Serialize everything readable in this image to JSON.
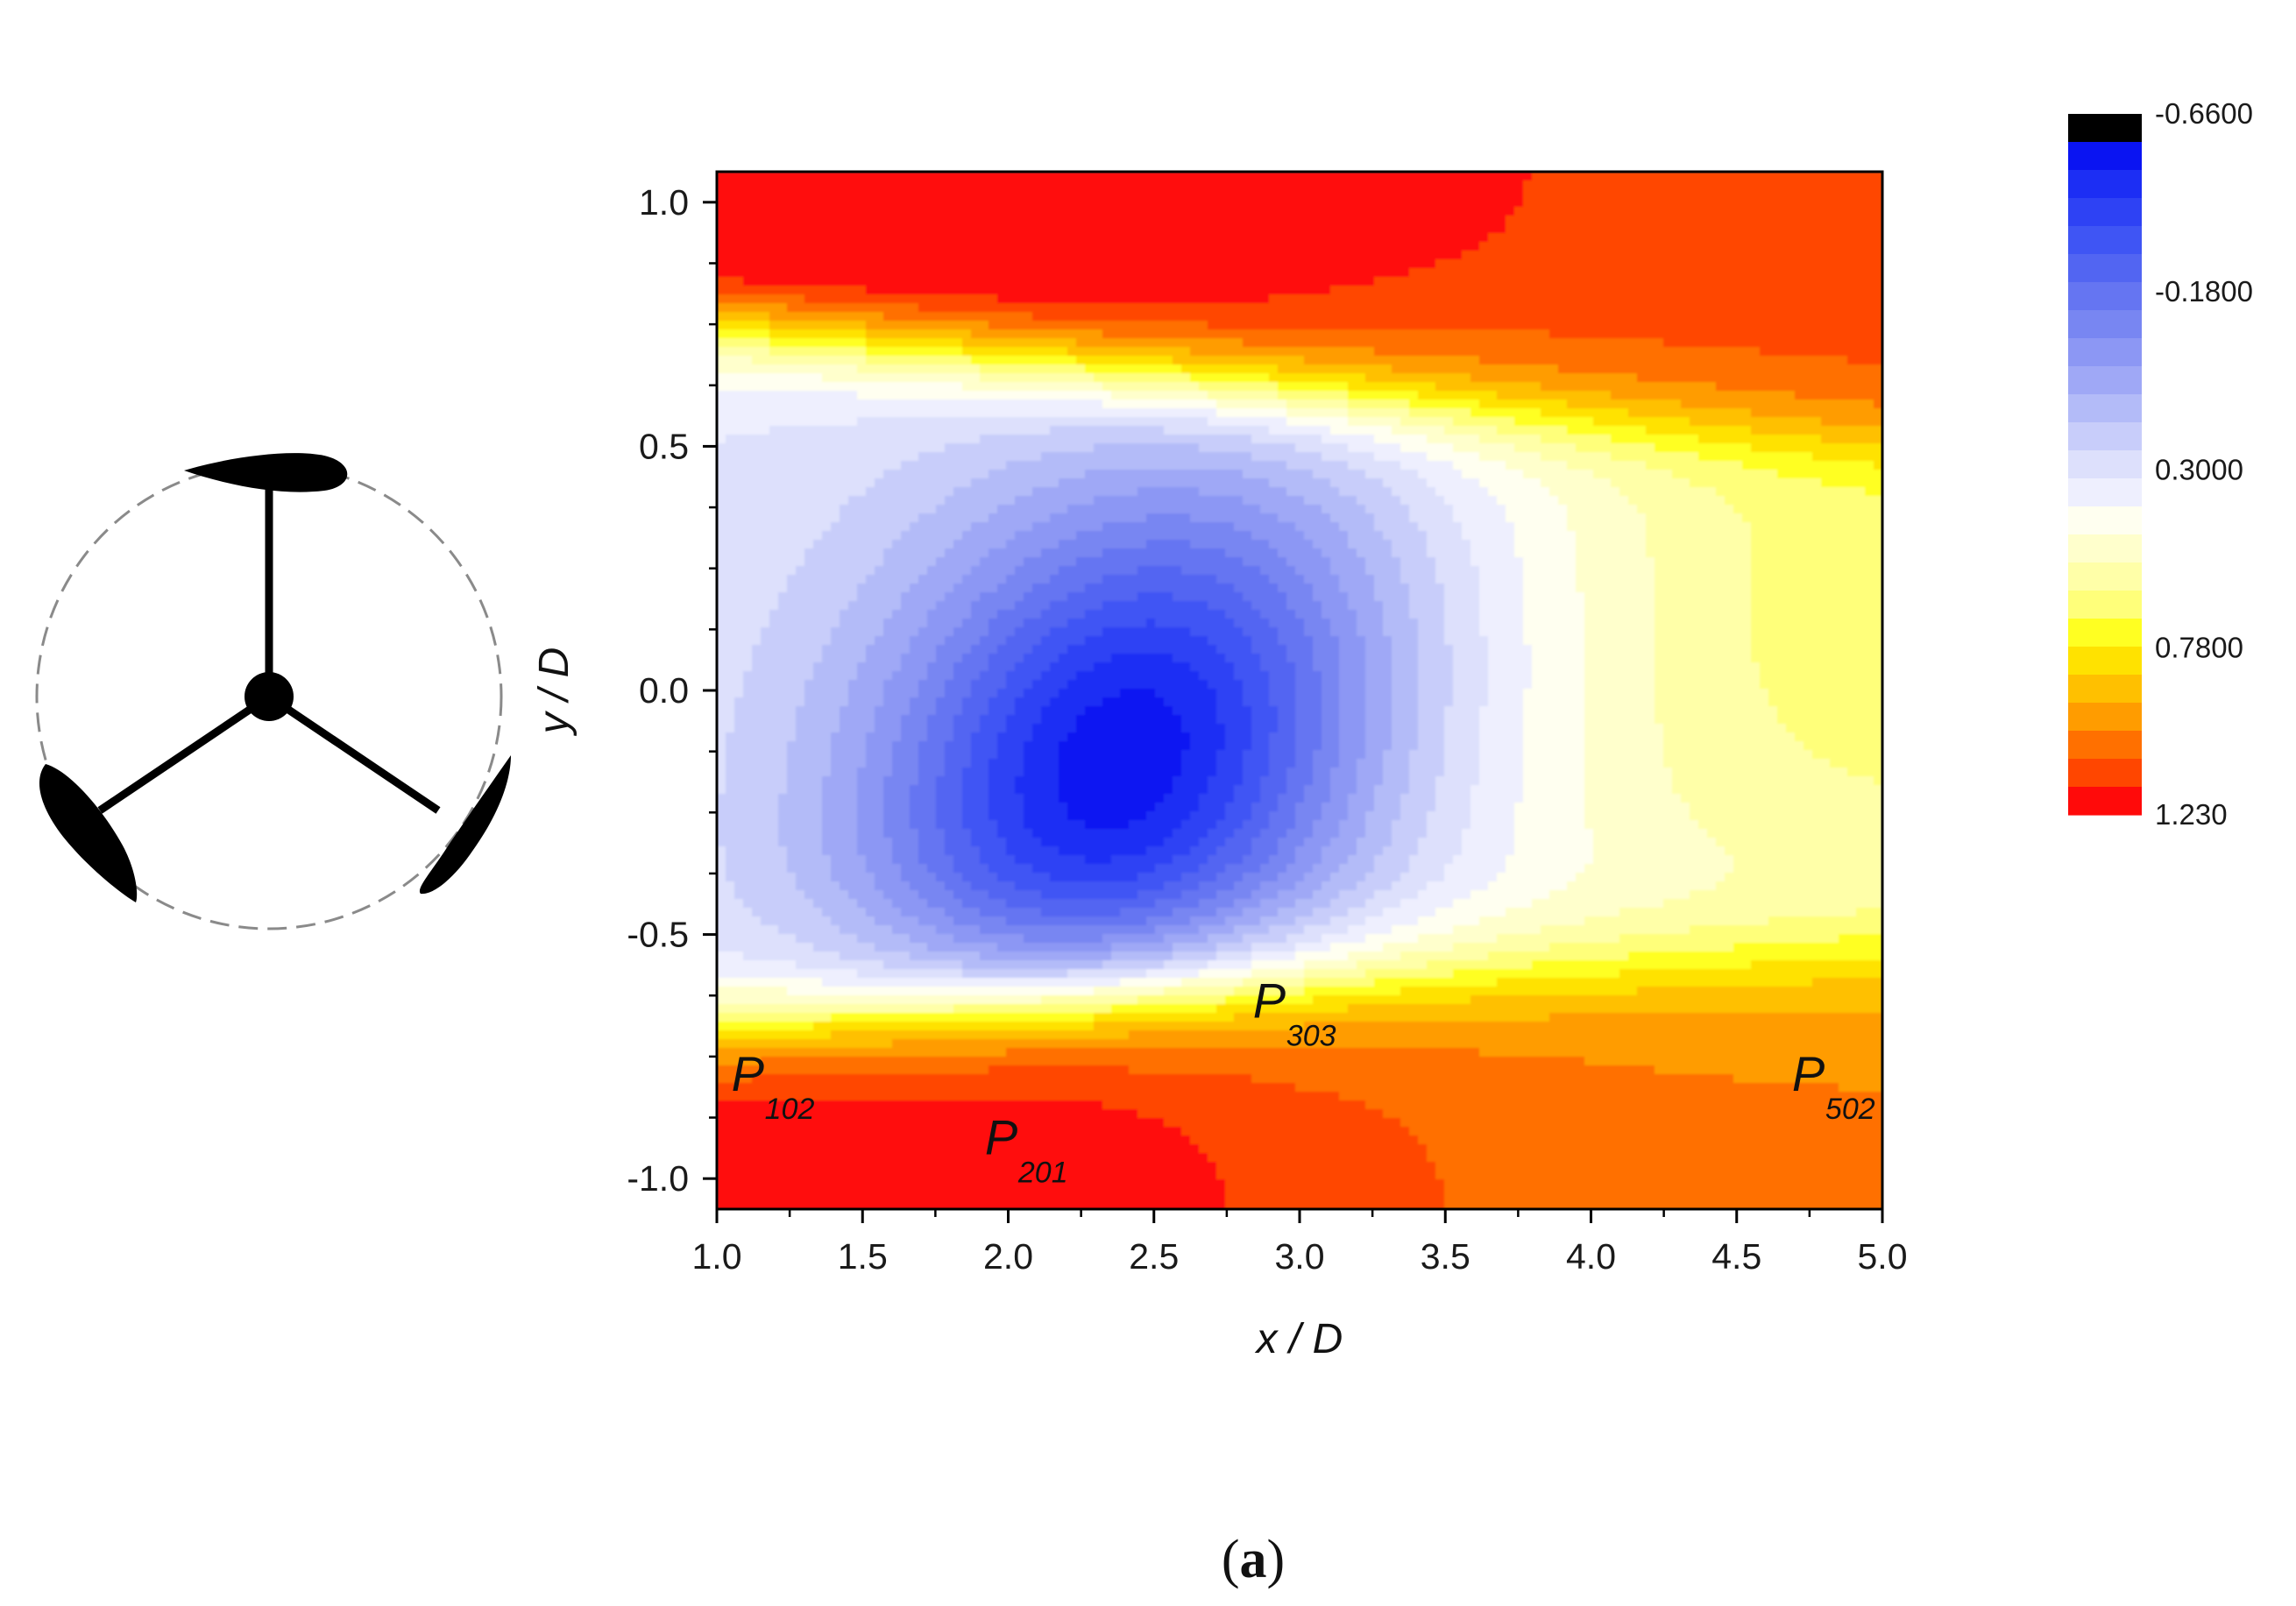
{
  "chart_data": {
    "type": "heatmap",
    "xlabel": "x / D",
    "ylabel": "y / D",
    "xlim": [
      1.0,
      5.0
    ],
    "ylim": [
      -1.0625,
      1.0625
    ],
    "x_ticks": [
      "1.0",
      "1.5",
      "2.0",
      "2.5",
      "3.0",
      "3.5",
      "4.0",
      "4.5",
      "5.0"
    ],
    "y_ticks": [
      "1.0",
      "0.5",
      "0.0",
      "-0.5",
      "-1.0"
    ],
    "y_tick_values": [
      1.0,
      0.5,
      0.0,
      -0.5,
      -1.0
    ],
    "colorbar": {
      "labels": [
        "-0.6600",
        "-0.1800",
        "0.3000",
        "0.7800",
        "1.230"
      ],
      "label_values": [
        -0.66,
        -0.18,
        0.3,
        0.78,
        1.23
      ],
      "min": -0.66,
      "max": 1.23,
      "levels": 25,
      "colors": [
        "#000000",
        "#0a14f2",
        "#1c2ef4",
        "#2e42f4",
        "#3f55f4",
        "#5265f2",
        "#6575f2",
        "#7886f2",
        "#8c97f4",
        "#9fa8f6",
        "#b3bbf8",
        "#c8cdfa",
        "#dde0fc",
        "#eeeffe",
        "#fffff0",
        "#ffffcc",
        "#ffffa8",
        "#ffff7a",
        "#ffff22",
        "#ffe200",
        "#ffc000",
        "#ff9c00",
        "#ff7000",
        "#ff4600",
        "#ff0a0a"
      ]
    },
    "annotations": [
      {
        "label": "P",
        "sub": "102",
        "x": 1.05,
        "y": -0.82
      },
      {
        "label": "P",
        "sub": "201",
        "x": 1.92,
        "y": -0.95
      },
      {
        "label": "P",
        "sub": "303",
        "x": 2.84,
        "y": -0.67
      },
      {
        "label": "P",
        "sub": "502",
        "x": 4.69,
        "y": -0.82
      }
    ],
    "field_features": {
      "wake_deficit_center": {
        "x": 2.4,
        "y": -0.15,
        "value": -0.46
      },
      "upper_shear_edge_y": 0.7,
      "lower_shear_edge_y": -0.66
    }
  },
  "caption": {
    "open": "(",
    "letter": "a",
    "close": ")"
  },
  "inset": {
    "icon": "three-blade-rotor-icon"
  }
}
